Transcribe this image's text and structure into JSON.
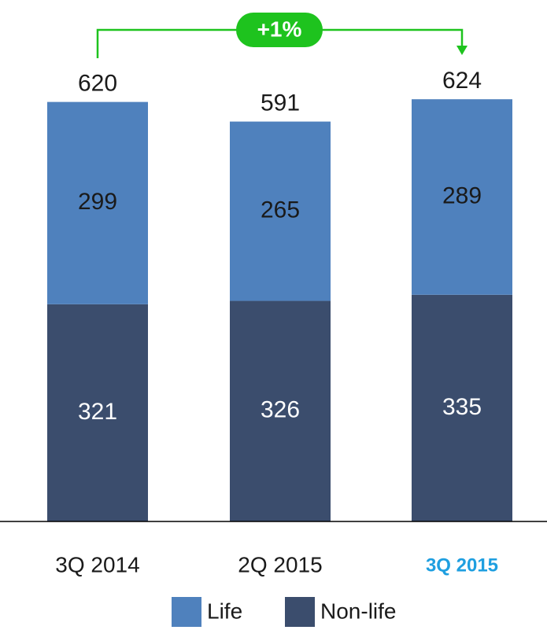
{
  "chart_data": {
    "type": "stacked_bar",
    "categories": [
      "3Q 2014",
      "2Q 2015",
      "3Q 2015"
    ],
    "series": [
      {
        "name": "Life",
        "color": "#4f81bd",
        "values": [
          299,
          265,
          289
        ]
      },
      {
        "name": "Non-life",
        "color": "#3b4d6d",
        "values": [
          321,
          326,
          335
        ]
      }
    ],
    "totals": [
      620,
      591,
      624
    ],
    "annotation": "+1%",
    "annotation_color": "#1ec31e",
    "highlight_index": 2,
    "highlight_color": "#1f9fe0",
    "ylim": [
      0,
      680
    ]
  }
}
